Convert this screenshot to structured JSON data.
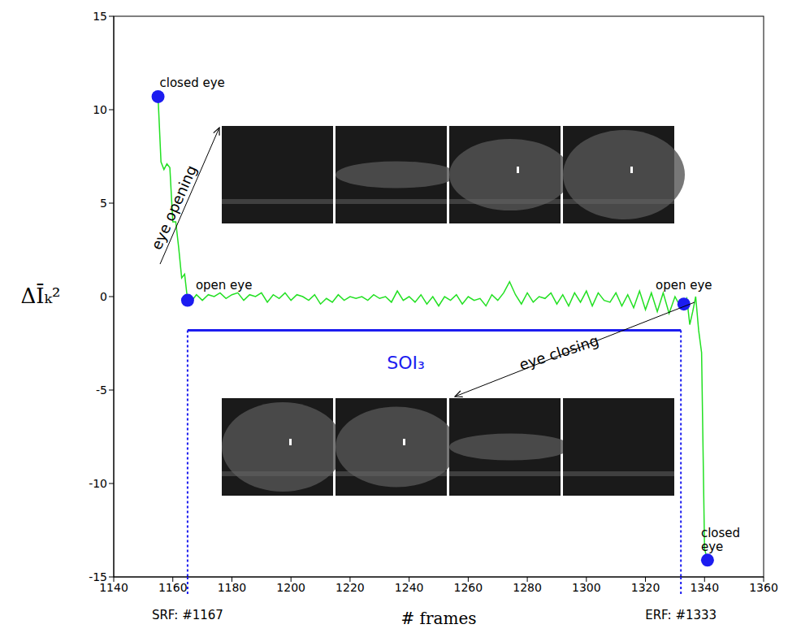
{
  "chart_data": {
    "type": "line",
    "xlabel": "# frames",
    "ylabel": "ΔĪₖ²",
    "color": "#22e022",
    "xlim": [
      1140,
      1360
    ],
    "xticks": [
      1140,
      1160,
      1180,
      1200,
      1220,
      1240,
      1260,
      1280,
      1300,
      1320,
      1340,
      1360
    ],
    "ylim": [
      -15,
      15
    ],
    "yticks": [
      -15,
      -10,
      -5,
      0,
      5,
      10,
      15
    ],
    "grid": false,
    "x": [
      1155,
      1156,
      1157,
      1158,
      1159,
      1160,
      1161,
      1162,
      1163,
      1164,
      1165,
      1166,
      1168,
      1170,
      1172,
      1174,
      1176,
      1178,
      1180,
      1182,
      1184,
      1186,
      1188,
      1190,
      1192,
      1194,
      1196,
      1198,
      1200,
      1202,
      1204,
      1206,
      1208,
      1210,
      1212,
      1214,
      1216,
      1218,
      1220,
      1222,
      1224,
      1226,
      1228,
      1230,
      1232,
      1234,
      1236,
      1238,
      1240,
      1242,
      1244,
      1246,
      1248,
      1250,
      1252,
      1254,
      1256,
      1258,
      1260,
      1262,
      1264,
      1266,
      1268,
      1270,
      1272,
      1274,
      1276,
      1278,
      1280,
      1282,
      1284,
      1286,
      1288,
      1290,
      1292,
      1294,
      1296,
      1298,
      1300,
      1302,
      1304,
      1306,
      1308,
      1310,
      1312,
      1314,
      1316,
      1318,
      1320,
      1322,
      1324,
      1326,
      1328,
      1330,
      1332,
      1333,
      1334,
      1335,
      1336,
      1337,
      1338,
      1339,
      1340,
      1341
    ],
    "values": [
      10.7,
      7.2,
      6.8,
      7.1,
      6.9,
      4.0,
      4.0,
      2.6,
      1.0,
      1.2,
      -0.2,
      -0.3,
      0.1,
      -0.2,
      0.1,
      0.0,
      0.2,
      -0.1,
      0.1,
      0.2,
      -0.2,
      0.1,
      0.0,
      0.2,
      -0.3,
      0.1,
      -0.1,
      0.2,
      -0.2,
      0.1,
      0.0,
      -0.2,
      0.1,
      -0.4,
      -0.1,
      -0.3,
      0.1,
      -0.2,
      0.0,
      -0.1,
      0.0,
      -0.2,
      0.1,
      -0.1,
      0.0,
      -0.3,
      0.3,
      -0.2,
      0.0,
      -0.3,
      0.1,
      -0.4,
      0.0,
      -0.5,
      0.0,
      -0.2,
      0.1,
      -0.4,
      0.0,
      -0.2,
      -0.1,
      -0.5,
      0.1,
      -0.2,
      0.2,
      0.8,
      0.1,
      -0.4,
      0.2,
      -0.3,
      0.0,
      -0.1,
      0.2,
      -0.4,
      0.1,
      -0.5,
      0.2,
      -0.3,
      0.3,
      -0.5,
      0.2,
      -0.2,
      -0.3,
      0.2,
      -0.5,
      0.1,
      -0.6,
      0.3,
      -0.7,
      0.2,
      -0.8,
      0.2,
      -0.9,
      0.0,
      -0.6,
      -0.4,
      -0.1,
      -1.5,
      -0.8,
      0.0,
      -1.8,
      -3.0,
      -13.5,
      -14.1
    ],
    "markers": [
      {
        "x": 1155,
        "y": 10.7,
        "label": "closed eye"
      },
      {
        "x": 1165,
        "y": -0.2,
        "label": "open eye"
      },
      {
        "x": 1333,
        "y": -0.4,
        "label": "open eye"
      },
      {
        "x": 1341,
        "y": -14.1,
        "label": "closed eye"
      }
    ],
    "marker_color": "#1c1cf0",
    "arrows": [
      {
        "text": "eye opening"
      },
      {
        "text": "eye closing"
      }
    ],
    "soi": {
      "label": "SOI₃",
      "x_start": 1165,
      "x_end": 1332,
      "y": -1.8,
      "color": "#1c1cf0",
      "start_label": "SRF: #1167",
      "end_label": "ERF: #1333"
    }
  }
}
